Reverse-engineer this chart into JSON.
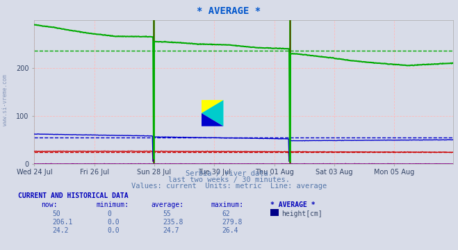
{
  "title": "* AVERAGE *",
  "title_color": "#0055cc",
  "background_color": "#d8dce8",
  "plot_bg_color": "#d8dce8",
  "ylim": [
    0,
    300
  ],
  "yticks": [
    0,
    100,
    200
  ],
  "xlabel_dates": [
    "Wed 24 Jul",
    "Fri 26 Jul",
    "Sun 28 Jul",
    "Tue 30 Jul",
    "Thu 01 Aug",
    "Sat 03 Aug",
    "Mon 05 Aug"
  ],
  "grid_color_h": "#ffbbbb",
  "grid_color_v": "#ffbbbb",
  "watermark": "www.si-vreme.com",
  "watermark_color": "#8899bb",
  "subtitle1": "Serbia / river data.",
  "subtitle2": "last two weeks / 30 minutes.",
  "subtitle3": "Values: current  Units: metric  Line: average",
  "subtitle_color": "#5577aa",
  "table_header": "CURRENT AND HISTORICAL DATA",
  "table_cols": [
    "now:",
    "minimum:",
    "average:",
    "maximum:",
    "* AVERAGE *"
  ],
  "table_row1": [
    "50",
    "0",
    "55",
    "62"
  ],
  "table_row2": [
    "206.1",
    "0.0",
    "235.8",
    "279.8"
  ],
  "table_row3": [
    "24.2",
    "0.0",
    "24.7",
    "26.4"
  ],
  "legend_label": "height[cm]",
  "legend_color": "#000088",
  "num_points": 672,
  "green_line_color": "#00aa00",
  "blue_line_color": "#0000cc",
  "red_line_color": "#cc0000",
  "purple_line_color": "#880088",
  "green_dashed_avg": 235.8,
  "blue_dashed_avg": 55.0,
  "red_dashed_avg": 24.7,
  "vline_color": "#00cc00",
  "vline_color2": "#880000",
  "vx1": 191,
  "vx2": 409
}
